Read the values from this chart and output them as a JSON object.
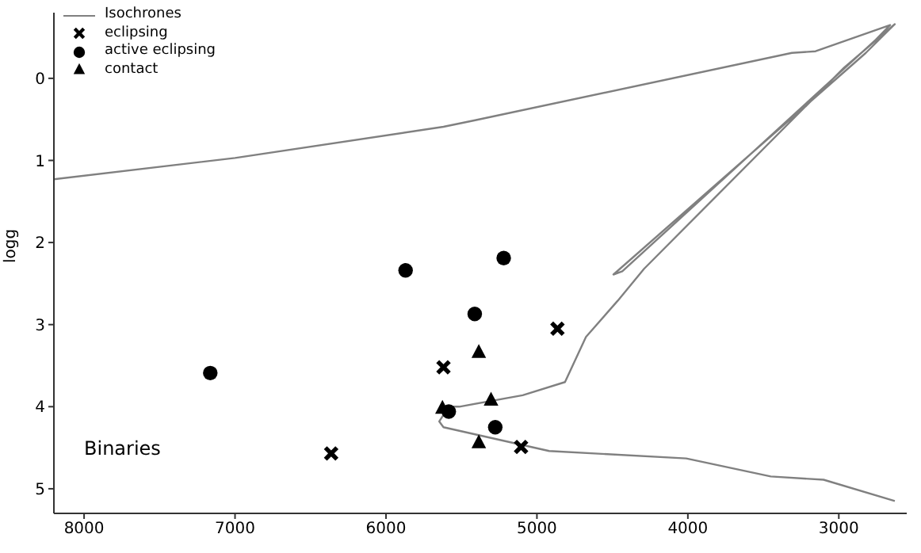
{
  "chart_data": {
    "type": "scatter",
    "ylabel": "logg",
    "annotations": [
      "Binaries"
    ],
    "xlim": [
      8200,
      2550
    ],
    "xticks": [
      8000,
      7000,
      6000,
      5000,
      4000,
      3000
    ],
    "ylim": [
      5.3,
      -0.8
    ],
    "yticks": [
      0,
      1,
      2,
      3,
      4,
      5
    ],
    "grid": false,
    "legend": "top left",
    "series": [
      {
        "name": "Isochrones",
        "type": "line",
        "color": "#808080",
        "marker": "none",
        "line_style": "solid",
        "x": [
          2629,
          3101,
          3451,
          4011,
          4919,
          5619,
          5647,
          5584,
          5514,
          5094,
          4814,
          4675,
          4465,
          4290,
          2965,
          2629,
          2821,
          4493,
          4434,
          2755,
          2660,
          3154,
          3311,
          5409,
          5619,
          7000,
          8200
        ],
        "values": [
          5.15,
          4.89,
          4.85,
          4.63,
          4.54,
          4.25,
          4.18,
          4.0,
          4.0,
          3.86,
          3.7,
          3.15,
          2.71,
          2.32,
          -0.13,
          -0.66,
          -0.31,
          2.39,
          2.35,
          -0.47,
          -0.65,
          -0.33,
          -0.31,
          0.51,
          0.59,
          0.97,
          1.23
        ]
      },
      {
        "name": "eclipsing",
        "color": "#000000",
        "marker": "cross",
        "x": [
          6363,
          5619,
          4864,
          5105
        ],
        "values": [
          4.57,
          3.52,
          3.05,
          4.49
        ]
      },
      {
        "name": "active eclipsing",
        "color": "#000000",
        "marker": "circle",
        "x": [
          7164,
          5870,
          5412,
          5220,
          5584,
          5276
        ],
        "values": [
          3.59,
          2.34,
          2.87,
          2.19,
          4.06,
          4.25
        ]
      },
      {
        "name": "contact",
        "color": "#000000",
        "marker": "triangle",
        "x": [
          5385,
          5304,
          5626,
          5385
        ],
        "values": [
          3.34,
          3.92,
          4.02,
          4.44
        ]
      }
    ]
  }
}
